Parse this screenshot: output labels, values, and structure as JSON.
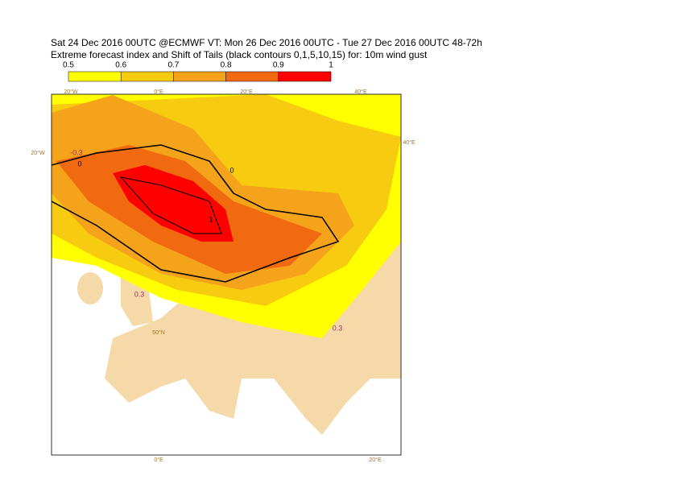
{
  "header": {
    "line1": "Sat 24 Dec 2016 00UTC @ECMWF VT: Mon 26 Dec 2016 00UTC - Tue 27 Dec 2016 00UTC  48-72h",
    "line2": "Extreme forecast index and Shift of Tails (black contours 0,1,5,10,15) for: 10m wind gust"
  },
  "legend": {
    "ticks": [
      0.5,
      0.6,
      0.7,
      0.8,
      0.9,
      1
    ],
    "colors": [
      "#ffff00",
      "#f7cc10",
      "#f5a31a",
      "#f26a10",
      "#ff0000"
    ]
  },
  "map": {
    "graticule_labels": [
      "20°W",
      "0°E",
      "20°E",
      "40°E",
      "20°W",
      "40°E",
      "50°N",
      "0°E",
      "20°E"
    ],
    "contour_labels": [
      "0",
      "-0.3",
      "0",
      "0.3",
      "0.3",
      "1"
    ]
  }
}
